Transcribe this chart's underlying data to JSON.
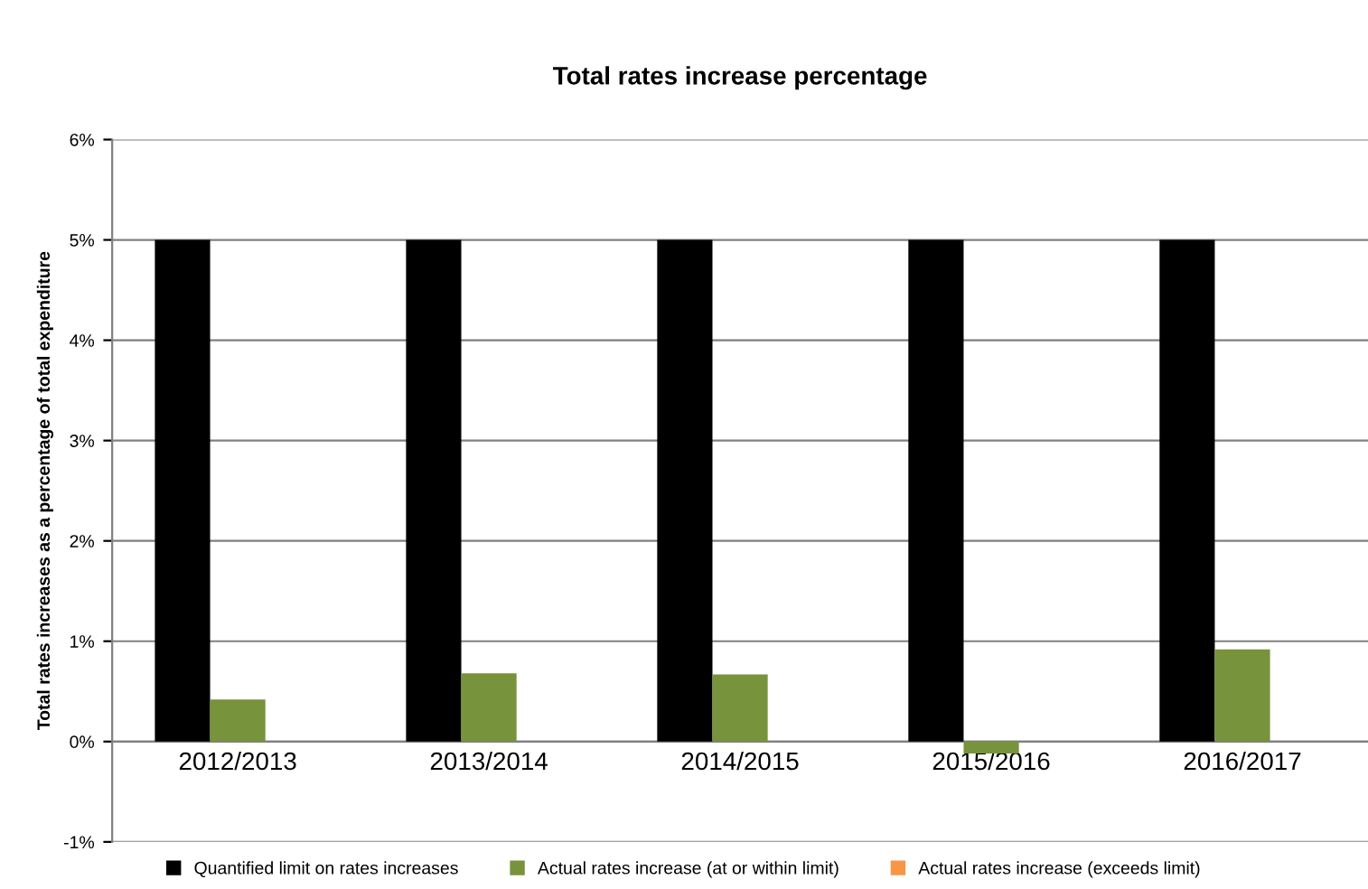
{
  "chart_data": {
    "type": "bar",
    "title": "Total rates increase percentage",
    "ylabel": "Total rates increases as a percentage of total expenditure",
    "categories": [
      "2012/2013",
      "2013/2014",
      "2014/2015",
      "2015/2016",
      "2016/2017"
    ],
    "series": [
      {
        "name": "Quantified limit on rates increases",
        "color": "#000000",
        "values": [
          5,
          5,
          5,
          5,
          5
        ]
      },
      {
        "name": "Actual rates increase (at or within limit)",
        "color": "#77933c",
        "values": [
          0.42,
          0.68,
          0.67,
          -0.12,
          0.92
        ]
      },
      {
        "name": "Actual rates increase (exceeds limit)",
        "color": "#f79646",
        "values": [
          null,
          null,
          null,
          null,
          null
        ]
      }
    ],
    "ylim": [
      -1,
      6
    ],
    "yticks": [
      {
        "value": -1,
        "label": "-1%"
      },
      {
        "value": 0,
        "label": "0%"
      },
      {
        "value": 1,
        "label": "1%"
      },
      {
        "value": 2,
        "label": "2%"
      },
      {
        "value": 3,
        "label": "3%"
      },
      {
        "value": 4,
        "label": "4%"
      },
      {
        "value": 5,
        "label": "5%"
      },
      {
        "value": 6,
        "label": "6%"
      }
    ],
    "grid": "y",
    "legend": "bottom"
  }
}
